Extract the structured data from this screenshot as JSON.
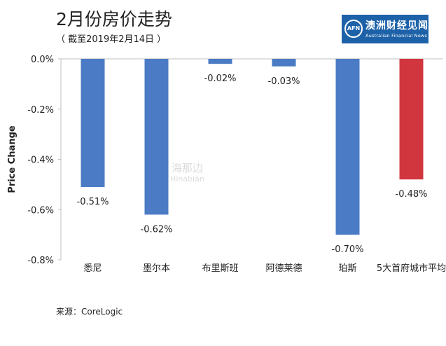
{
  "header": {
    "title": "2月份房价走势",
    "subtitle": "（ 截至2019年2月14日 ）"
  },
  "logo": {
    "mark": "AFN",
    "name_cn": "澳洲财经见闻",
    "name_en": "Australian Financial News",
    "color": "#1d62a8"
  },
  "watermark": {
    "cn": "海那边",
    "en": "Hinabian"
  },
  "source": "来源：CoreLogic",
  "chart_data": {
    "type": "bar",
    "categories": [
      "悉尼",
      "墨尔本",
      "布里斯班",
      "阿德莱德",
      "珀斯",
      "5大首府城市平均"
    ],
    "values": [
      -0.51,
      -0.62,
      -0.02,
      -0.03,
      -0.7,
      -0.48
    ],
    "data_labels": [
      "-0.51%",
      "-0.62%",
      "-0.02%",
      "-0.03%",
      "-0.70%",
      "-0.48%"
    ],
    "colors": [
      "#4a7bc4",
      "#4a7bc4",
      "#4a7bc4",
      "#4a7bc4",
      "#4a7bc4",
      "#d1363f"
    ],
    "ylabel": "Price Change",
    "ylim": [
      -0.8,
      0.0
    ],
    "yticks": [
      0.0,
      -0.2,
      -0.4,
      -0.6,
      -0.8
    ],
    "ytick_labels": [
      "0.0%",
      "-0.2%",
      "-0.4%",
      "-0.6%",
      "-0.8%"
    ],
    "grid": false
  }
}
